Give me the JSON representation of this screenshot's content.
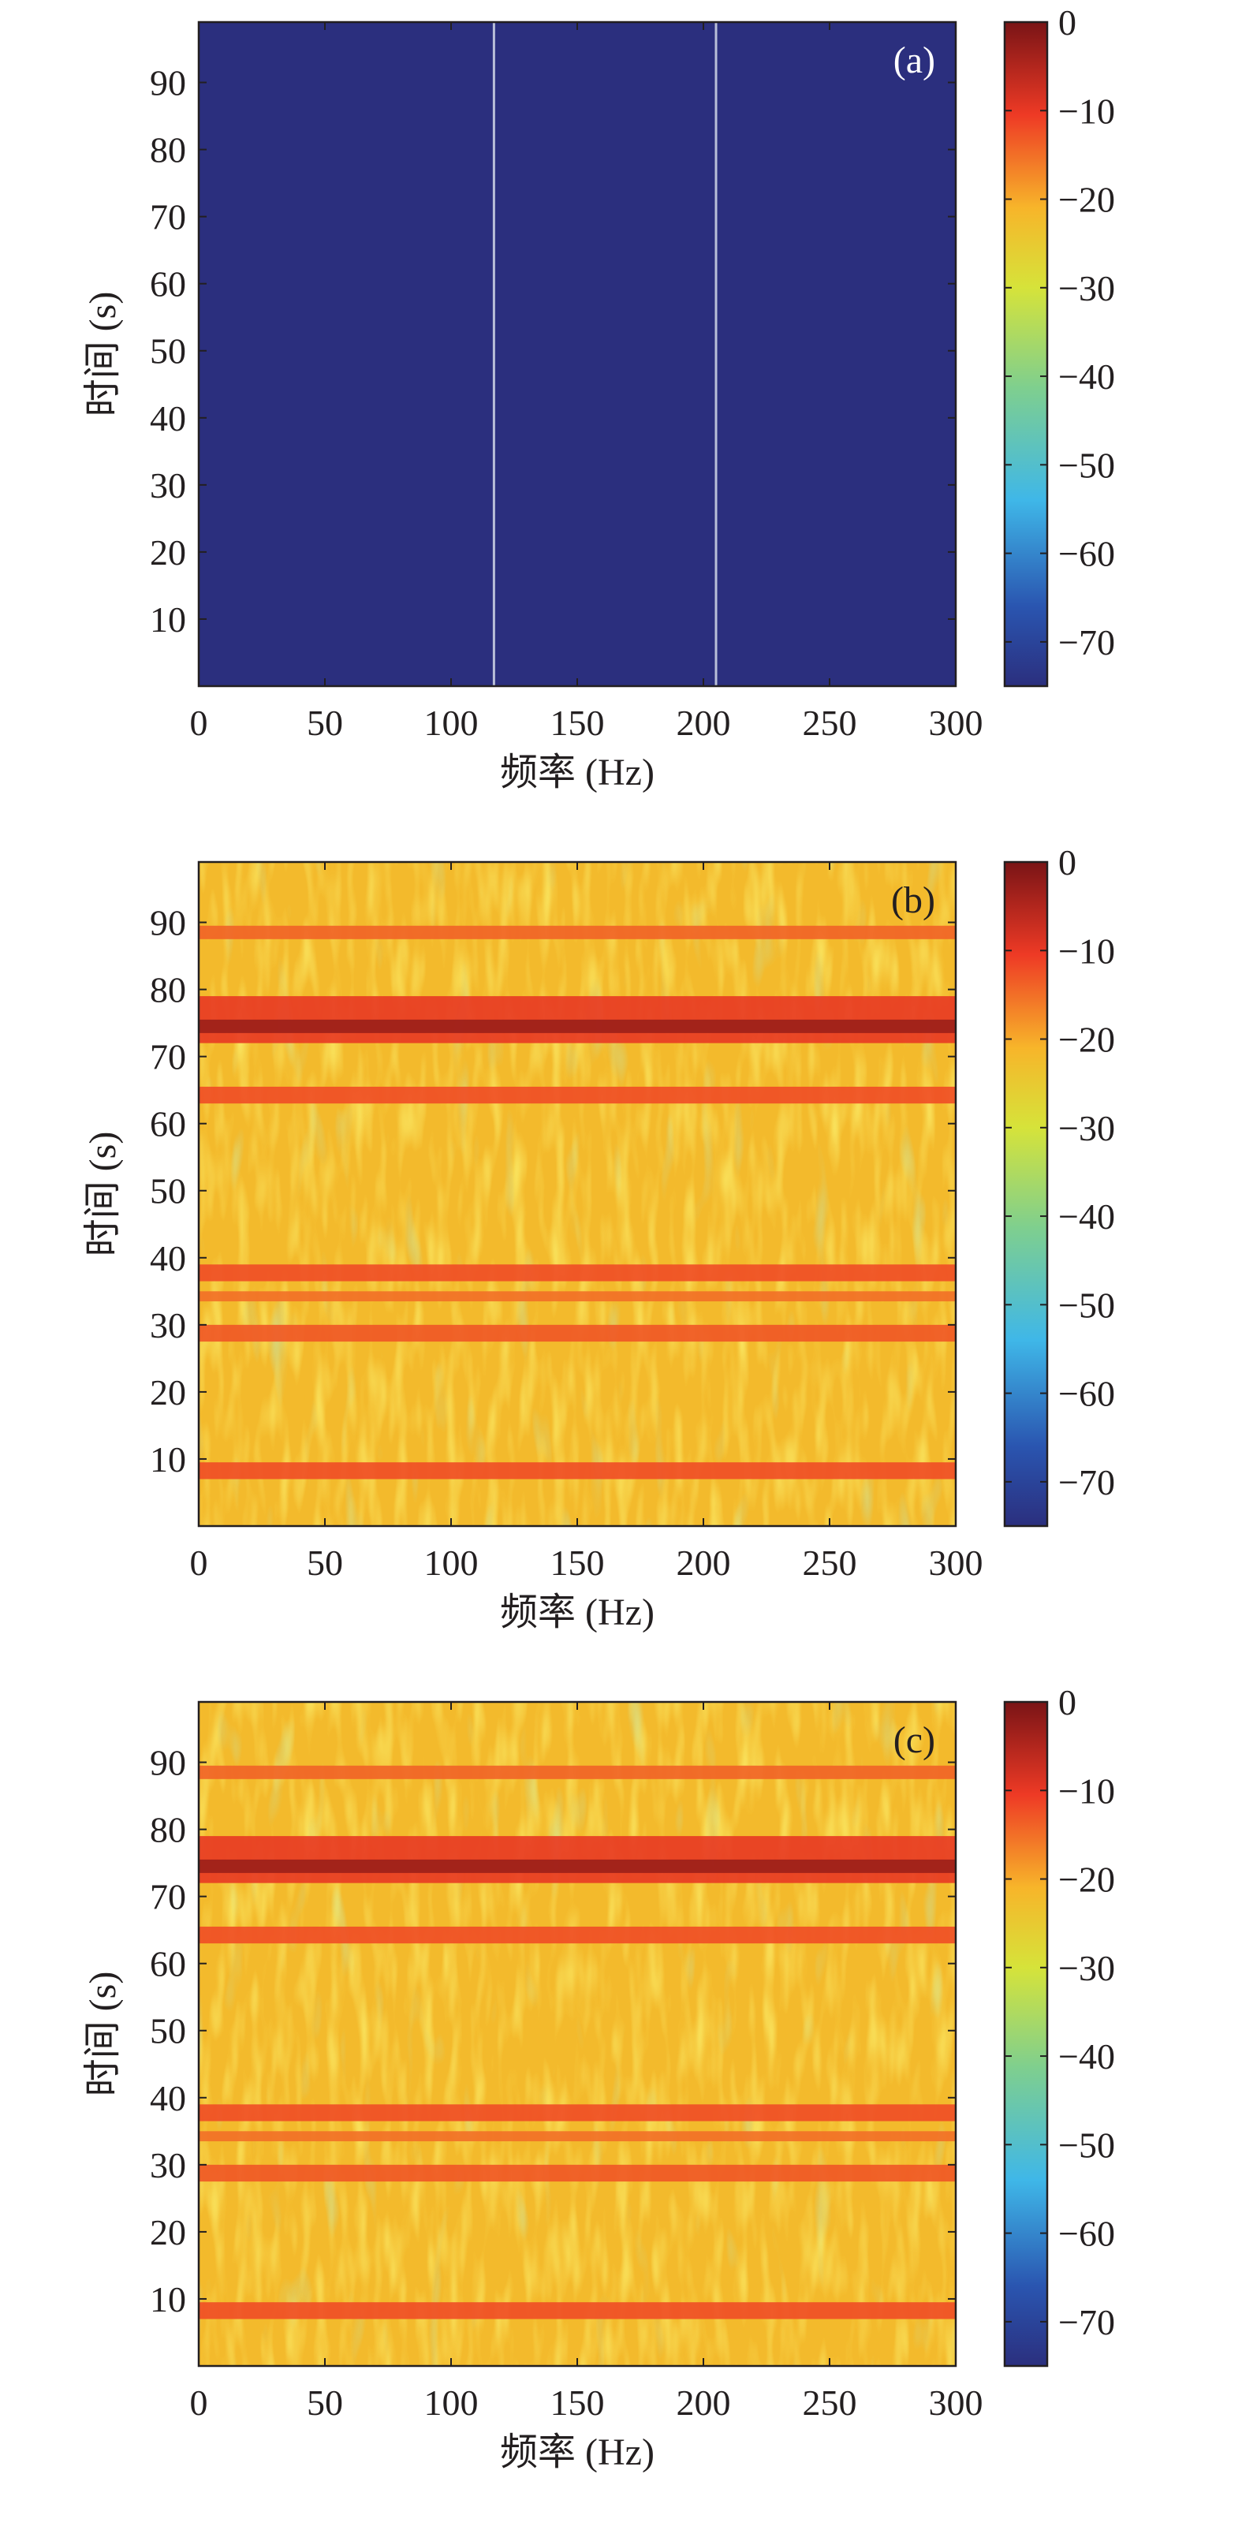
{
  "chart_data": [
    {
      "type": "heatmap",
      "panel_label": "(a)",
      "xlabel": "频率 (Hz)",
      "ylabel": "时间 (s)",
      "xlim": [
        0,
        300
      ],
      "ylim": [
        0,
        99
      ],
      "x_ticks": [
        0,
        50,
        100,
        150,
        200,
        250,
        300
      ],
      "y_ticks": [
        10,
        20,
        30,
        40,
        50,
        60,
        70,
        80,
        90
      ],
      "colorbar": {
        "min": -75,
        "max": 0,
        "ticks": [
          0,
          -10,
          -20,
          -30,
          -40,
          -50,
          -60,
          -70
        ],
        "colormap": "jet"
      },
      "background_level_db": -75,
      "spectral_lines": [
        {
          "freq_hz": 117,
          "level_db": -55
        },
        {
          "freq_hz": 205,
          "level_db": -55
        }
      ]
    },
    {
      "type": "heatmap",
      "panel_label": "(b)",
      "xlabel": "频率 (Hz)",
      "ylabel": "时间 (s)",
      "xlim": [
        0,
        300
      ],
      "ylim": [
        0,
        99
      ],
      "x_ticks": [
        0,
        50,
        100,
        150,
        200,
        250,
        300
      ],
      "y_ticks": [
        10,
        20,
        30,
        40,
        50,
        60,
        70,
        80,
        90
      ],
      "colorbar": {
        "min": -75,
        "max": 0,
        "ticks": [
          0,
          -10,
          -20,
          -30,
          -40,
          -50,
          -60,
          -70
        ],
        "colormap": "jet"
      },
      "background_level_db": -22,
      "time_bands": [
        {
          "t_start": 7,
          "t_end": 9.5,
          "level_db": -12
        },
        {
          "t_start": 27.5,
          "t_end": 30,
          "level_db": -13
        },
        {
          "t_start": 33.5,
          "t_end": 35,
          "level_db": -15
        },
        {
          "t_start": 36.5,
          "t_end": 39,
          "level_db": -12
        },
        {
          "t_start": 63,
          "t_end": 65.5,
          "level_db": -12
        },
        {
          "t_start": 72,
          "t_end": 79,
          "level_db": -10
        },
        {
          "t_start": 73.5,
          "t_end": 75.5,
          "level_db": -3
        },
        {
          "t_start": 87.5,
          "t_end": 89.5,
          "level_db": -14
        }
      ]
    },
    {
      "type": "heatmap",
      "panel_label": "(c)",
      "xlabel": "频率 (Hz)",
      "ylabel": "时间 (s)",
      "xlim": [
        0,
        300
      ],
      "ylim": [
        0,
        99
      ],
      "x_ticks": [
        0,
        50,
        100,
        150,
        200,
        250,
        300
      ],
      "y_ticks": [
        10,
        20,
        30,
        40,
        50,
        60,
        70,
        80,
        90
      ],
      "colorbar": {
        "min": -75,
        "max": 0,
        "ticks": [
          0,
          -10,
          -20,
          -30,
          -40,
          -50,
          -60,
          -70
        ],
        "colormap": "jet"
      },
      "background_level_db": -22,
      "time_bands": [
        {
          "t_start": 7,
          "t_end": 9.5,
          "level_db": -12
        },
        {
          "t_start": 27.5,
          "t_end": 30,
          "level_db": -13
        },
        {
          "t_start": 33.5,
          "t_end": 35,
          "level_db": -15
        },
        {
          "t_start": 36.5,
          "t_end": 39,
          "level_db": -12
        },
        {
          "t_start": 63,
          "t_end": 65.5,
          "level_db": -12
        },
        {
          "t_start": 72,
          "t_end": 79,
          "level_db": -10
        },
        {
          "t_start": 73.5,
          "t_end": 75.5,
          "level_db": -3
        },
        {
          "t_start": 87.5,
          "t_end": 89.5,
          "level_db": -14
        }
      ]
    }
  ]
}
